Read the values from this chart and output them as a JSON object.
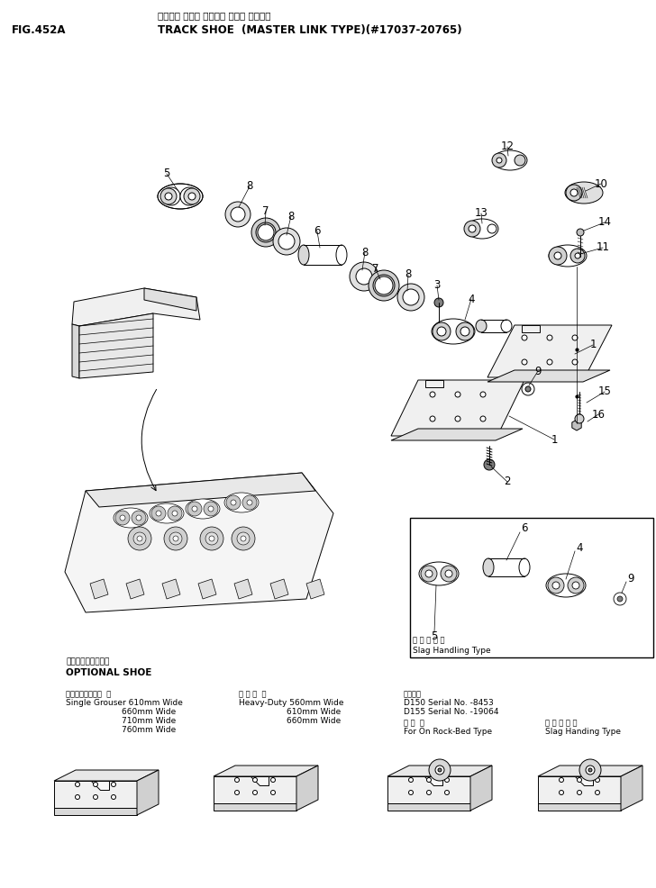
{
  "fig_label": "FIG.452A",
  "title_jp": "トラック シュー （マスタ リンク タイプ）",
  "title_en": "TRACK SHOE  (MASTER LINK TYPE)(#17037-20765)",
  "bg_color": "#ffffff",
  "figsize": [
    7.28,
    9.86
  ],
  "dpi": 100,
  "lw": 0.7,
  "ec": "#000000"
}
